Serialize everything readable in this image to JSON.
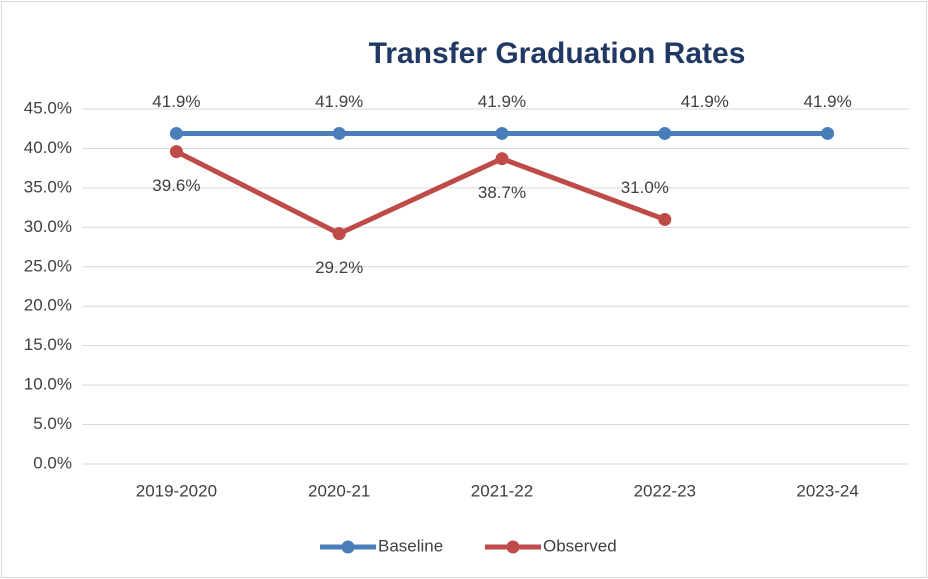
{
  "chart_data": {
    "type": "line",
    "title": "Transfer Graduation Rates",
    "categories": [
      "2019-2020",
      "2020-21",
      "2021-22",
      "2022-23",
      "2023-24"
    ],
    "series": [
      {
        "name": "Baseline",
        "color": "#4a7ebb",
        "values": [
          41.9,
          41.9,
          41.9,
          41.9,
          41.9
        ],
        "value_labels": [
          "41.9%",
          "41.9%",
          "41.9%",
          "41.9%",
          "41.9%"
        ]
      },
      {
        "name": "Observed",
        "color": "#be4b48",
        "values": [
          39.6,
          29.2,
          38.7,
          31.0,
          null
        ],
        "value_labels": [
          "39.6%",
          "29.2%",
          "38.7%",
          "31.0%",
          null
        ]
      }
    ],
    "ylim": [
      0,
      45
    ],
    "yticks": [
      {
        "value": 0,
        "label": "0.0%"
      },
      {
        "value": 5,
        "label": "5.0%"
      },
      {
        "value": 10,
        "label": "10.0%"
      },
      {
        "value": 15,
        "label": "15.0%"
      },
      {
        "value": 20,
        "label": "20.0%"
      },
      {
        "value": 25,
        "label": "25.0%"
      },
      {
        "value": 30,
        "label": "30.0%"
      },
      {
        "value": 35,
        "label": "35.0%"
      },
      {
        "value": 40,
        "label": "40.0%"
      },
      {
        "value": 45,
        "label": "45.0%"
      }
    ],
    "grid": true,
    "legend": "bottom"
  }
}
